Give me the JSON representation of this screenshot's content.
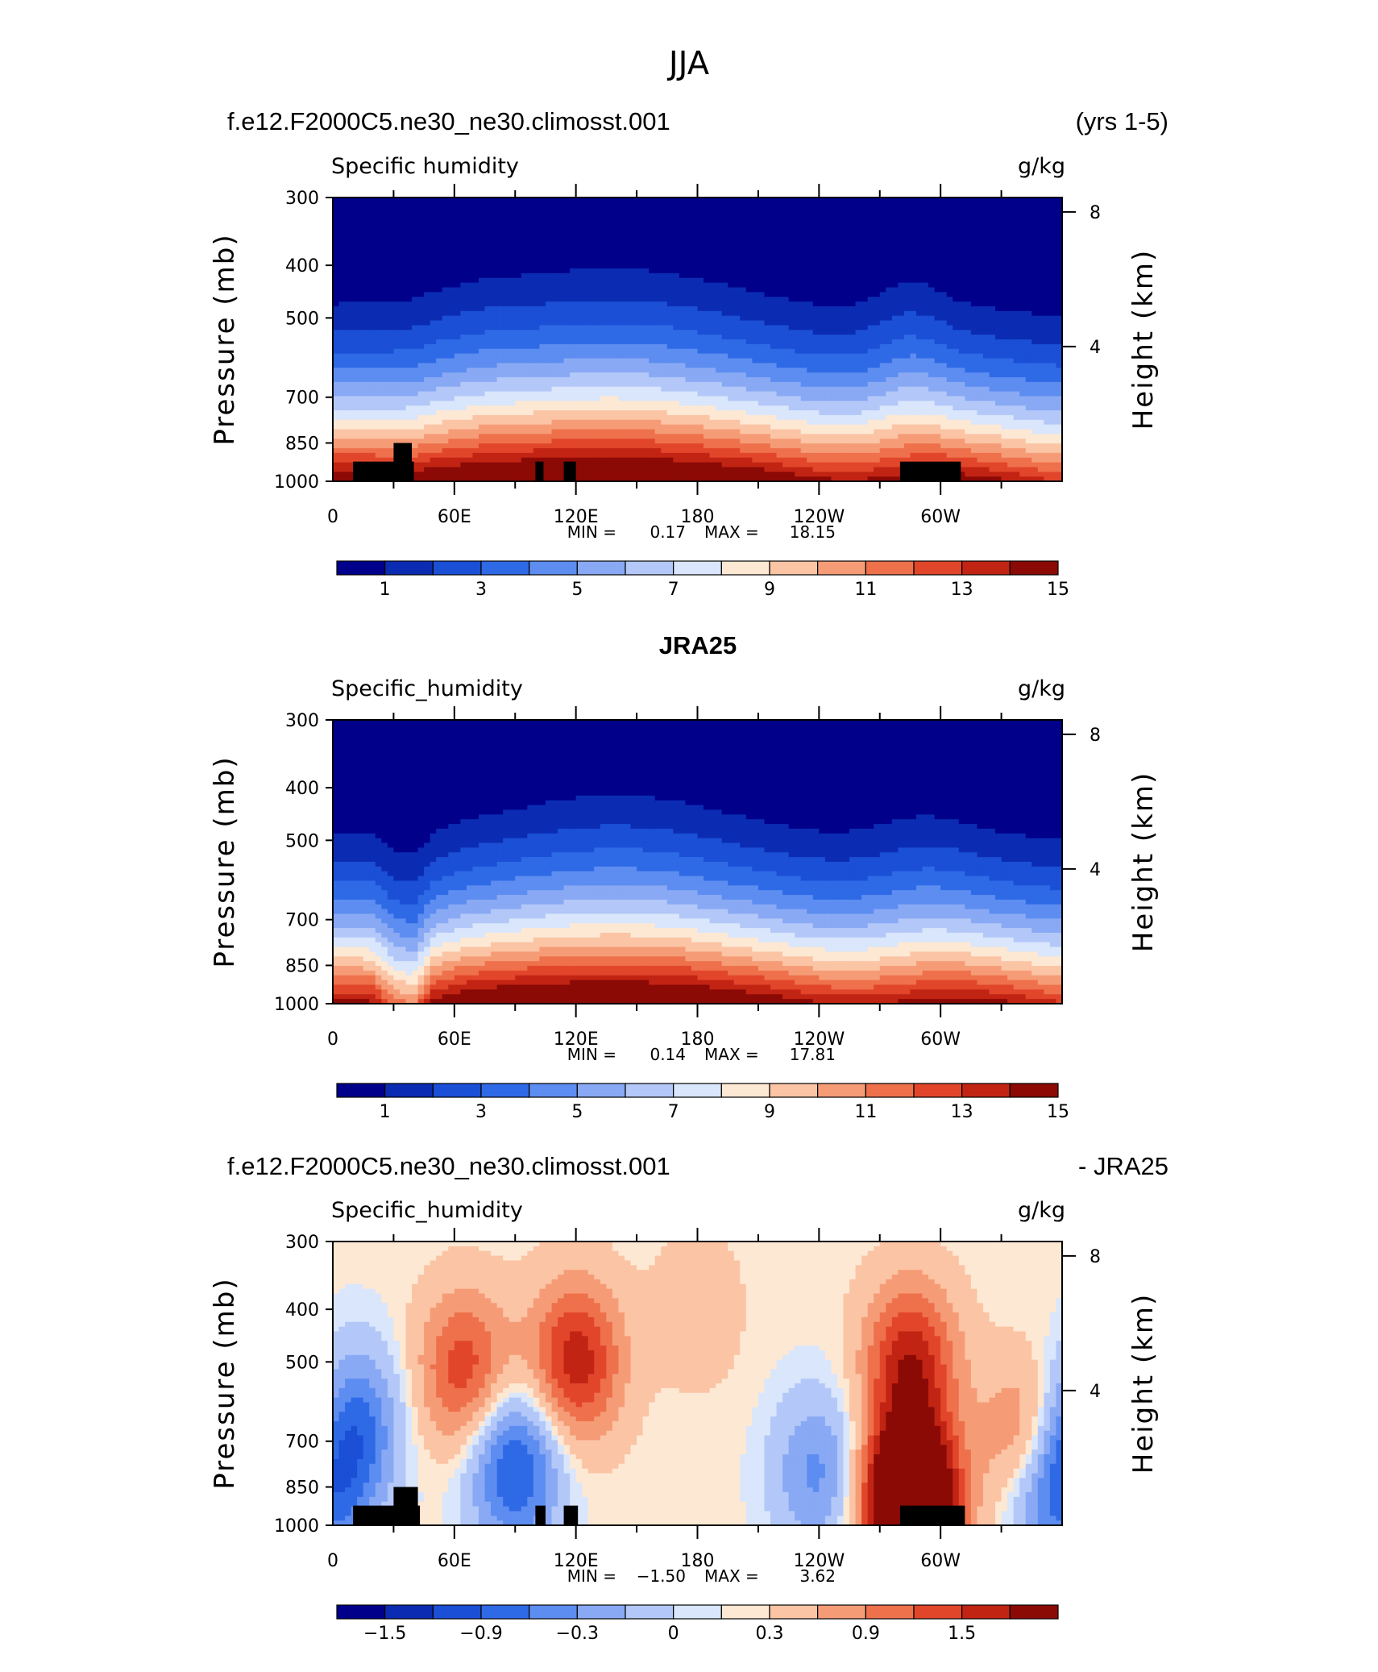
{
  "figure": {
    "season_title": "JJA",
    "panel_top_case": "f.e12.F2000C5.ne30_ne30.climosst.001",
    "panel_top_years": "(yrs 1-5)",
    "panel_mid_title": "JRA25",
    "panel_bot_case": "f.e12.F2000C5.ne30_ne30.climosst.001",
    "panel_bot_suffix": "- JRA25"
  },
  "colors": {
    "scale": [
      "#00008b",
      "#0b2cb2",
      "#1a4fd6",
      "#2f6ae6",
      "#5d8df0",
      "#89a9f4",
      "#b3c8f8",
      "#d9e6fb",
      "#fde8d4",
      "#fbc4a4",
      "#f59c77",
      "#ee714c",
      "#e2462a",
      "#c22414",
      "#8b0a06"
    ],
    "land": "#000000"
  },
  "chart_data": [
    {
      "type": "heatmap",
      "field_label": "Specific humidity",
      "units": "g/kg",
      "ylabel": "Pressure (mb)",
      "y2label": "Height (km)",
      "x_tick_labels": [
        "0",
        "60E",
        "120E",
        "180",
        "120W",
        "60W"
      ],
      "x_ticks_deg": [
        0,
        60,
        120,
        180,
        240,
        300
      ],
      "xlim": [
        0,
        360
      ],
      "y_tick_labels": [
        "300",
        "400",
        "500",
        "700",
        "850",
        "1000"
      ],
      "y_ticks": [
        300,
        400,
        500,
        700,
        850,
        1000
      ],
      "y_scale": "log",
      "height_ticks": [
        "8",
        "4"
      ],
      "height_ticks_km": [
        8,
        4
      ],
      "min_label": "MIN =",
      "min_value": "0.17",
      "max_label": "MAX =",
      "max_value": "18.15",
      "colorbar_labels": [
        "1",
        "3",
        "5",
        "7",
        "9",
        "11",
        "13",
        "15"
      ],
      "colorbar_levels": [
        0,
        1,
        2,
        3,
        4,
        5,
        6,
        7,
        8,
        9,
        10,
        11,
        12,
        13,
        14,
        15,
        16
      ],
      "profile": {
        "lon": [
          0,
          10,
          20,
          30,
          40,
          50,
          60,
          70,
          80,
          90,
          100,
          110,
          120,
          130,
          140,
          150,
          160,
          170,
          180,
          190,
          200,
          210,
          220,
          230,
          240,
          250,
          260,
          270,
          280,
          290,
          300,
          310,
          320,
          330,
          340,
          350,
          360
        ],
        "surface_gkg": [
          16.5,
          16.5,
          16.5,
          16.2,
          16.2,
          16.8,
          17,
          17.3,
          17.5,
          17.6,
          17.8,
          17.9,
          18,
          18,
          18,
          17.9,
          17.8,
          17.6,
          17.4,
          17.2,
          16.9,
          16.6,
          16.2,
          15.8,
          15.4,
          15.2,
          15.2,
          15.5,
          15.8,
          16,
          16.2,
          16,
          15.7,
          15.3,
          14.8,
          14.3,
          14
        ]
      },
      "land_blocks": [
        {
          "lon_start": 10,
          "lon_end": 40,
          "p_top": 920
        },
        {
          "lon_start": 30,
          "lon_end": 39,
          "p_top": 850
        },
        {
          "lon_start": 100,
          "lon_end": 104,
          "p_top": 920
        },
        {
          "lon_start": 114,
          "lon_end": 120,
          "p_top": 920
        },
        {
          "lon_start": 280,
          "lon_end": 310,
          "p_top": 920
        }
      ]
    },
    {
      "type": "heatmap",
      "field_label": "Specific_humidity",
      "units": "g/kg",
      "ylabel": "Pressure (mb)",
      "y2label": "Height (km)",
      "x_tick_labels": [
        "0",
        "60E",
        "120E",
        "180",
        "120W",
        "60W"
      ],
      "x_ticks_deg": [
        0,
        60,
        120,
        180,
        240,
        300
      ],
      "xlim": [
        0,
        360
      ],
      "y_tick_labels": [
        "300",
        "400",
        "500",
        "700",
        "850",
        "1000"
      ],
      "y_ticks": [
        300,
        400,
        500,
        700,
        850,
        1000
      ],
      "y_scale": "log",
      "height_ticks": [
        "8",
        "4"
      ],
      "height_ticks_km": [
        8,
        4
      ],
      "min_label": "MIN =",
      "min_value": "0.14",
      "max_label": "MAX =",
      "max_value": "17.81",
      "colorbar_labels": [
        "1",
        "3",
        "5",
        "7",
        "9",
        "11",
        "13",
        "15"
      ],
      "colorbar_levels": [
        0,
        1,
        2,
        3,
        4,
        5,
        6,
        7,
        8,
        9,
        10,
        11,
        12,
        13,
        14,
        15,
        16
      ],
      "profile": {
        "lon": [
          0,
          10,
          20,
          30,
          40,
          50,
          60,
          70,
          80,
          90,
          100,
          110,
          120,
          130,
          140,
          150,
          160,
          170,
          180,
          190,
          200,
          210,
          220,
          230,
          240,
          250,
          260,
          270,
          280,
          290,
          300,
          310,
          320,
          330,
          340,
          350,
          360
        ],
        "surface_gkg": [
          15.5,
          15.5,
          15.3,
          12.5,
          12,
          15.8,
          16.5,
          17,
          17.2,
          17.4,
          17.5,
          17.6,
          17.7,
          17.7,
          17.7,
          17.7,
          17.6,
          17.5,
          17.3,
          17,
          16.7,
          16.4,
          16,
          15.6,
          15.2,
          15,
          14.9,
          15,
          15.3,
          15.5,
          15.8,
          15.9,
          15.7,
          15.4,
          15,
          14.5,
          14.2
        ]
      }
    },
    {
      "type": "heatmap",
      "field_label": "Specific_humidity",
      "units": "g/kg",
      "ylabel": "Pressure (mb)",
      "y2label": "Height (km)",
      "x_tick_labels": [
        "0",
        "60E",
        "120E",
        "180",
        "120W",
        "60W"
      ],
      "x_ticks_deg": [
        0,
        60,
        120,
        180,
        240,
        300
      ],
      "xlim": [
        0,
        360
      ],
      "y_tick_labels": [
        "300",
        "400",
        "500",
        "700",
        "850",
        "1000"
      ],
      "y_ticks": [
        300,
        400,
        500,
        700,
        850,
        1000
      ],
      "y_scale": "log",
      "height_ticks": [
        "8",
        "4"
      ],
      "height_ticks_km": [
        8,
        4
      ],
      "min_label": "MIN =",
      "min_value": "−1.50",
      "max_label": "MAX =",
      "max_value": "3.62",
      "colorbar_labels": [
        "−1.5",
        "−0.9",
        "−0.3",
        "0",
        "0.3",
        "0.9",
        "1.5"
      ],
      "colorbar_levels": [
        -2.1,
        -1.8,
        -1.5,
        -1.2,
        -0.9,
        -0.6,
        -0.3,
        0,
        0.15,
        0.3,
        0.6,
        0.9,
        1.2,
        1.5,
        1.8,
        2.1
      ],
      "difference_features": [
        {
          "lon": 10,
          "p": 650,
          "value": -1.2
        },
        {
          "lon": 90,
          "p": 780,
          "value": -1.5
        },
        {
          "lon": 120,
          "p": 500,
          "value": 1.5
        },
        {
          "lon": 65,
          "p": 520,
          "value": 1.2
        },
        {
          "lon": 240,
          "p": 800,
          "value": -0.9
        },
        {
          "lon": 285,
          "p": 500,
          "value": 1.5
        },
        {
          "lon": 285,
          "p": 900,
          "value": 3.62
        },
        {
          "lon": 355,
          "p": 850,
          "value": -1.5
        },
        {
          "lon": 345,
          "p": 700,
          "value": 1.2
        },
        {
          "lon": 180,
          "p": 400,
          "value": 0.3
        }
      ],
      "land_blocks": [
        {
          "lon_start": 10,
          "lon_end": 43,
          "p_top": 920
        },
        {
          "lon_start": 30,
          "lon_end": 42,
          "p_top": 850
        },
        {
          "lon_start": 100,
          "lon_end": 105,
          "p_top": 920
        },
        {
          "lon_start": 114,
          "lon_end": 121,
          "p_top": 920
        },
        {
          "lon_start": 280,
          "lon_end": 312,
          "p_top": 920
        }
      ]
    }
  ]
}
